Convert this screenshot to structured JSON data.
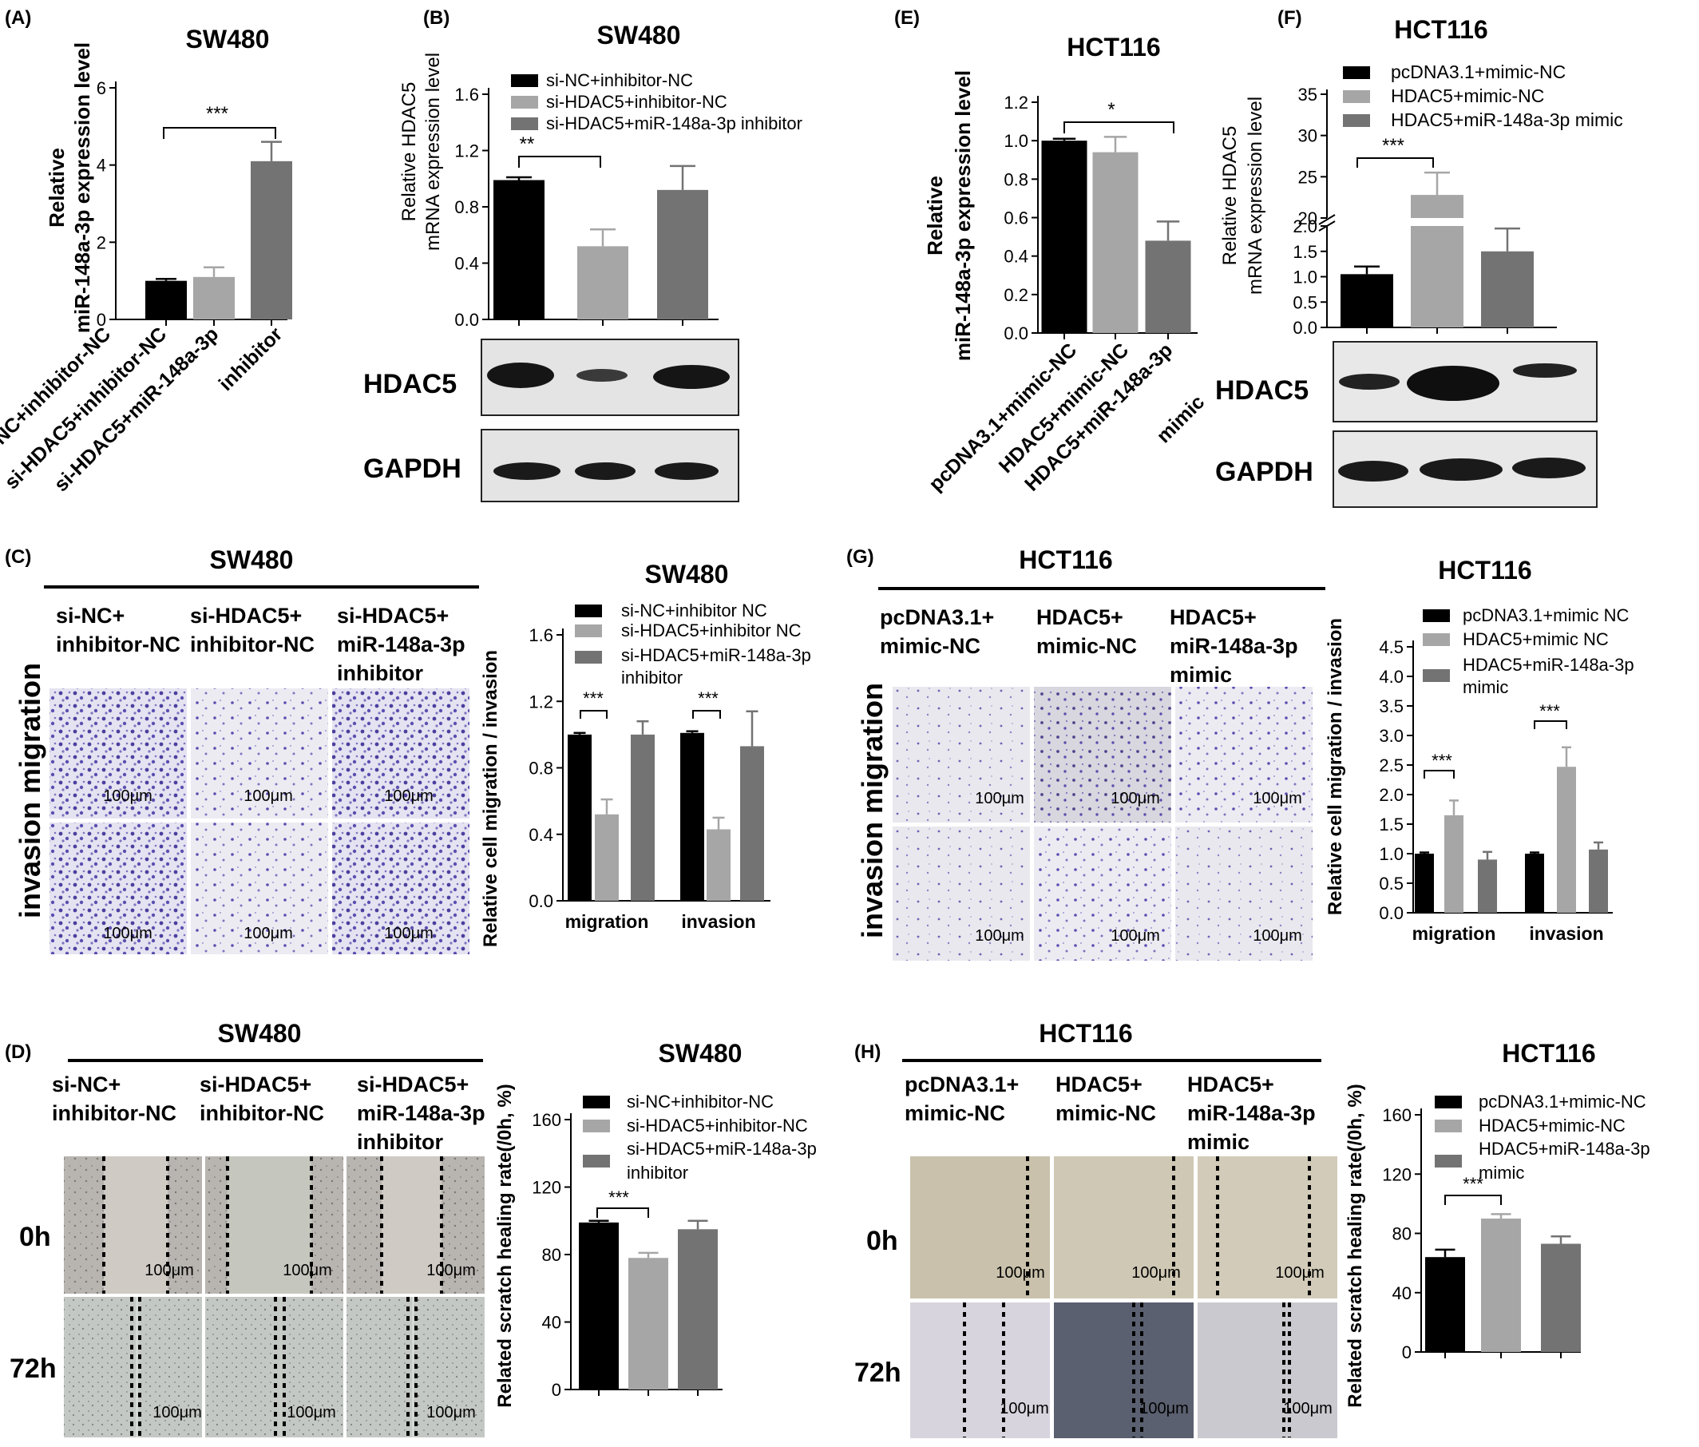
{
  "panels": {
    "A": {
      "letter": "(A)",
      "title": "SW480",
      "ylabel": [
        "Relative",
        "miR-148a-3p expression level"
      ],
      "sig": "***",
      "xlabels": [
        "si-NC+inhibitor-NC",
        "si-HDAC5+inhibitor-NC",
        "si-HDAC5+miR-148a-3p",
        "inhibitor"
      ]
    },
    "B": {
      "letter": "(B)",
      "title": "SW480",
      "ylabel": [
        "Relative HDAC5",
        "mRNA expression level"
      ],
      "legend": [
        "si-NC+inhibitor-NC",
        "si-HDAC5+inhibitor-NC",
        "si-HDAC5+miR-148a-3p inhibitor"
      ],
      "sig": "**",
      "blot1": "HDAC5",
      "blot2": "GAPDH"
    },
    "E": {
      "letter": "(E)",
      "title": "HCT116",
      "ylabel": [
        "Relative",
        "miR-148a-3p expression level"
      ],
      "sig": "*",
      "xlabels": [
        "pcDNA3.1+mimic-NC",
        "HDAC5+mimic-NC",
        "HDAC5+miR-148a-3p",
        "mimic"
      ]
    },
    "F": {
      "letter": "(F)",
      "title": "HCT116",
      "ylabel": [
        "Relative HDAC5",
        "mRNA expression level"
      ],
      "legend": [
        "pcDNA3.1+mimic-NC",
        "HDAC5+mimic-NC",
        "HDAC5+miR-148a-3p mimic"
      ],
      "sig": "***",
      "blot1": "HDAC5",
      "blot2": "GAPDH"
    },
    "C": {
      "letter": "(C)",
      "title": "SW480",
      "groups": [
        [
          "si-NC+",
          "inhibitor-NC"
        ],
        [
          "si-HDAC5+",
          "inhibitor-NC"
        ],
        [
          "si-HDAC5+",
          "miR-148a-3p",
          "inhibitor"
        ]
      ],
      "side_label": "invasion migration",
      "scale": "100μm",
      "chart_title": "SW480",
      "legend": [
        "si-NC+inhibitor NC",
        "si-HDAC5+inhibitor NC",
        "si-HDAC5+miR-148a-3p",
        "inhibitor"
      ],
      "ylabel": "Relative cell migration / invasion",
      "sig": "***"
    },
    "G": {
      "letter": "(G)",
      "title": "HCT116",
      "groups": [
        [
          "pcDNA3.1+",
          "mimic-NC"
        ],
        [
          "HDAC5+",
          "mimic-NC"
        ],
        [
          "HDAC5+",
          "miR-148a-3p",
          "mimic"
        ]
      ],
      "side_label": "invasion migration",
      "scale": "100μm",
      "chart_title": "HCT116",
      "legend": [
        "pcDNA3.1+mimic NC",
        "HDAC5+mimic NC",
        "HDAC5+miR-148a-3p",
        "mimic"
      ],
      "ylabel": "Relative cell migration / invasion",
      "sig": "***"
    },
    "D": {
      "letter": "(D)",
      "title": "SW480",
      "groups": [
        [
          "si-NC+",
          "inhibitor-NC"
        ],
        [
          "si-HDAC5+",
          "inhibitor-NC"
        ],
        [
          "si-HDAC5+",
          "miR-148a-3p",
          "inhibitor"
        ]
      ],
      "times": [
        "0h",
        "72h"
      ],
      "scale": "100μm",
      "chart_title": "SW480",
      "legend": [
        "si-NC+inhibitor-NC",
        "si-HDAC5+inhibitor-NC",
        "si-HDAC5+miR-148a-3p",
        "inhibitor"
      ],
      "ylabel": "Related scratch healing rate(/0h, %)",
      "sig": "***"
    },
    "H": {
      "letter": "(H)",
      "title": "HCT116",
      "groups": [
        [
          "pcDNA3.1+",
          "mimic-NC"
        ],
        [
          "HDAC5+",
          "mimic-NC"
        ],
        [
          "HDAC5+",
          "miR-148a-3p",
          "mimic"
        ]
      ],
      "times": [
        "0h",
        "72h"
      ],
      "scale": "100μm",
      "chart_title": "HCT116",
      "legend": [
        "pcDNA3.1+mimic-NC",
        "HDAC5+mimic-NC",
        "HDAC5+miR-148a-3p",
        "mimic"
      ],
      "ylabel": "Related scratch healing rate(/0h, %)",
      "sig": "***"
    }
  },
  "colors": {
    "series1": "#000000",
    "series2": "#a6a6a6",
    "series3": "#737373",
    "stain": "#4b3f9e",
    "wound": "#c8c6bb"
  },
  "chart_data": [
    {
      "id": "A",
      "type": "bar",
      "title": "SW480",
      "categories": [
        "si-NC+inhibitor-NC",
        "si-HDAC5+inhibitor-NC",
        "si-HDAC5+miR-148a-3p inhibitor"
      ],
      "values": [
        1.0,
        1.1,
        4.1
      ],
      "errors": [
        0.05,
        0.25,
        0.5
      ],
      "ylim": [
        0,
        6
      ],
      "yticks": [
        0,
        2,
        4,
        6
      ],
      "ylabel": "Relative miR-148a-3p expression level"
    },
    {
      "id": "B",
      "type": "bar",
      "title": "SW480",
      "categories": [
        "si-NC+inhibitor-NC",
        "si-HDAC5+inhibitor-NC",
        "si-HDAC5+miR-148a-3p inhibitor"
      ],
      "values": [
        0.99,
        0.52,
        0.92
      ],
      "errors": [
        0.02,
        0.12,
        0.17
      ],
      "ylim": [
        0,
        1.6
      ],
      "yticks": [
        0.0,
        0.4,
        0.8,
        1.2,
        1.6
      ],
      "ylabel": "Relative HDAC5 mRNA expression level"
    },
    {
      "id": "E",
      "type": "bar",
      "title": "HCT116",
      "categories": [
        "pcDNA3.1+mimic-NC",
        "HDAC5+mimic-NC",
        "HDAC5+miR-148a-3p mimic"
      ],
      "values": [
        1.0,
        0.94,
        0.48
      ],
      "errors": [
        0.01,
        0.08,
        0.1
      ],
      "ylim": [
        0,
        1.2
      ],
      "yticks": [
        0.0,
        0.2,
        0.4,
        0.6,
        0.8,
        1.0,
        1.2
      ],
      "ylabel": "Relative miR-148a-3p expression level"
    },
    {
      "id": "F",
      "type": "bar",
      "title": "HCT116",
      "categories": [
        "pcDNA3.1+mimic-NC",
        "HDAC5+mimic-NC",
        "HDAC5+miR-148a-3p mimic"
      ],
      "values": [
        1.05,
        22.8,
        1.5
      ],
      "errors": [
        0.15,
        2.7,
        0.45
      ],
      "axis_break": [
        2.0,
        20
      ],
      "yticks": [
        0.0,
        0.5,
        1.0,
        1.5,
        2.0,
        20,
        25,
        30,
        35
      ],
      "ylabel": "Relative HDAC5 mRNA expression level"
    },
    {
      "id": "C",
      "type": "bar",
      "title": "SW480",
      "categories": [
        "migration",
        "invasion"
      ],
      "series": [
        {
          "name": "si-NC+inhibitor NC",
          "values": [
            1.0,
            1.01
          ],
          "errors": [
            0.01,
            0.01
          ]
        },
        {
          "name": "si-HDAC5+inhibitor NC",
          "values": [
            0.52,
            0.43
          ],
          "errors": [
            0.09,
            0.07
          ]
        },
        {
          "name": "si-HDAC5+miR-148a-3p inhibitor",
          "values": [
            1.0,
            0.93
          ],
          "errors": [
            0.08,
            0.21
          ]
        }
      ],
      "ylim": [
        0,
        1.6
      ],
      "yticks": [
        0.0,
        0.4,
        0.8,
        1.2,
        1.6
      ],
      "ylabel": "Relative cell migration / invasion"
    },
    {
      "id": "G",
      "type": "bar",
      "title": "HCT116",
      "categories": [
        "migration",
        "invasion"
      ],
      "series": [
        {
          "name": "pcDNA3.1+mimic NC",
          "values": [
            1.0,
            1.0
          ],
          "errors": [
            0.02,
            0.02
          ]
        },
        {
          "name": "HDAC5+mimic NC",
          "values": [
            1.65,
            2.47
          ],
          "errors": [
            0.25,
            0.33
          ]
        },
        {
          "name": "HDAC5+miR-148a-3p mimic",
          "values": [
            0.9,
            1.07
          ],
          "errors": [
            0.13,
            0.12
          ]
        }
      ],
      "ylim": [
        0,
        4.5
      ],
      "yticks": [
        0.0,
        0.5,
        1.0,
        1.5,
        2.0,
        2.5,
        3.0,
        3.5,
        4.0,
        4.5
      ],
      "ylabel": "Relative cell migration / invasion"
    },
    {
      "id": "D",
      "type": "bar",
      "title": "SW480",
      "categories": [
        "si-NC+inhibitor-NC",
        "si-HDAC5+inhibitor-NC",
        "si-HDAC5+miR-148a-3p inhibitor"
      ],
      "values": [
        99,
        78,
        95
      ],
      "errors": [
        1,
        3,
        5
      ],
      "ylim": [
        0,
        160
      ],
      "yticks": [
        0,
        40,
        80,
        120,
        160
      ],
      "ylabel": "Related scratch healing rate(/0h, %)"
    },
    {
      "id": "H",
      "type": "bar",
      "title": "HCT116",
      "categories": [
        "pcDNA3.1+mimic-NC",
        "HDAC5+mimic-NC",
        "HDAC5+miR-148a-3p mimic"
      ],
      "values": [
        64,
        90,
        73
      ],
      "errors": [
        5,
        3,
        5
      ],
      "ylim": [
        0,
        160
      ],
      "yticks": [
        0,
        40,
        80,
        120,
        160
      ],
      "ylabel": "Related scratch healing rate(/0h, %)"
    }
  ]
}
